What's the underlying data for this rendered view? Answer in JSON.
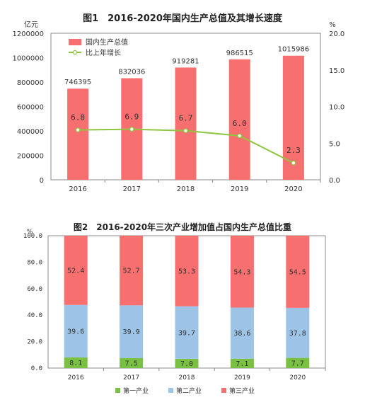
{
  "colors": {
    "gdp_bar": "#f76f6f",
    "growth_line": "#8dc63f",
    "primary": "#7ac143",
    "secondary": "#9dc3e6",
    "tertiary": "#f76f6f",
    "frame": "#8a8a8a",
    "label_dark": "#333333"
  },
  "chart_data": [
    {
      "type": "bar",
      "title": "图1　2016-2020年国内生产总值及其增长速度",
      "categories": [
        "2016",
        "2017",
        "2018",
        "2019",
        "2020"
      ],
      "left_unit": "亿元",
      "right_unit": "%",
      "ylim": [
        0,
        1200000
      ],
      "y2lim": [
        0,
        20
      ],
      "left_ticks": [
        "0",
        "200000",
        "400000",
        "600000",
        "800000",
        "1000000",
        "1200000"
      ],
      "right_ticks": [
        "0.0",
        "5.0",
        "10.0",
        "15.0",
        "20.0"
      ],
      "legend_position": "top-left",
      "grid": false,
      "series": [
        {
          "name": "国内生产总值",
          "type": "bar",
          "axis": "left",
          "values": [
            746395,
            832036,
            919281,
            986515,
            1015986
          ],
          "labels": [
            "746395",
            "832036",
            "919281",
            "986515",
            "1015986"
          ]
        },
        {
          "name": "比上年增长",
          "type": "line",
          "axis": "right",
          "values": [
            6.8,
            6.9,
            6.7,
            6.0,
            2.3
          ],
          "labels": [
            "6.8",
            "6.9",
            "6.7",
            "6.0",
            "2.3"
          ]
        }
      ]
    },
    {
      "type": "bar",
      "stacked": true,
      "title": "图2　2016-2020年三次产业增加值占国内生产总值比重",
      "categories": [
        "2016",
        "2017",
        "2018",
        "2019",
        "2020"
      ],
      "y_unit": "%",
      "ylim": [
        0,
        100
      ],
      "y_ticks": [
        "0.0",
        "20.0",
        "40.0",
        "60.0",
        "80.0",
        "100.0"
      ],
      "legend_position": "bottom-center",
      "grid": false,
      "series": [
        {
          "name": "第一产业",
          "values": [
            8.1,
            7.5,
            7.0,
            7.1,
            7.7
          ],
          "labels": [
            "8.1",
            "7.5",
            "7.0",
            "7.1",
            "7.7"
          ]
        },
        {
          "name": "第二产业",
          "values": [
            39.6,
            39.9,
            39.7,
            38.6,
            37.8
          ],
          "labels": [
            "39.6",
            "39.9",
            "39.7",
            "38.6",
            "37.8"
          ]
        },
        {
          "name": "第三产业",
          "values": [
            52.4,
            52.7,
            53.3,
            54.3,
            54.5
          ],
          "labels": [
            "52.4",
            "52.7",
            "53.3",
            "54.3",
            "54.5"
          ]
        }
      ]
    }
  ]
}
